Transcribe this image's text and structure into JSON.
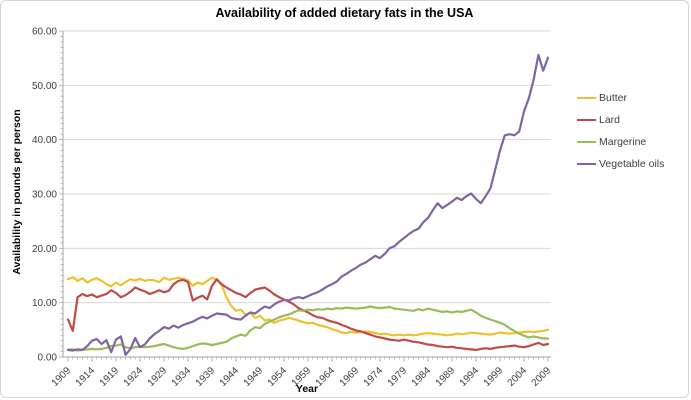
{
  "frame": {
    "title": "Availability of added dietary fats in the USA"
  },
  "chart_data": {
    "type": "line",
    "title": "Availability of added dietary fats in the USA",
    "xlabel": "Year",
    "ylabel": "Availability in pounds per person",
    "ylim": [
      0,
      60
    ],
    "y_tick_step": 10,
    "y_tick_labels": [
      "0.00",
      "10.00",
      "20.00",
      "30.00",
      "40.00",
      "50.00",
      "60.00"
    ],
    "x_range": [
      1909,
      2009
    ],
    "x_tick_step": 5,
    "x_tick_labels": [
      "1909",
      "1914",
      "1919",
      "1924",
      "1929",
      "1934",
      "1939",
      "1944",
      "1949",
      "1954",
      "1959",
      "1964",
      "1969",
      "1974",
      "1979",
      "1984",
      "1989",
      "1994",
      "1999",
      "2004",
      "2009"
    ],
    "grid": true,
    "legend_position": "right",
    "grid_color": "#d9d9d9",
    "axis_color": "#a6a6a6",
    "tick_label_color": "#404040",
    "years": [
      1909,
      1910,
      1911,
      1912,
      1913,
      1914,
      1915,
      1916,
      1917,
      1918,
      1919,
      1920,
      1921,
      1922,
      1923,
      1924,
      1925,
      1926,
      1927,
      1928,
      1929,
      1930,
      1931,
      1932,
      1933,
      1934,
      1935,
      1936,
      1937,
      1938,
      1939,
      1940,
      1941,
      1942,
      1943,
      1944,
      1945,
      1946,
      1947,
      1948,
      1949,
      1950,
      1951,
      1952,
      1953,
      1954,
      1955,
      1956,
      1957,
      1958,
      1959,
      1960,
      1961,
      1962,
      1963,
      1964,
      1965,
      1966,
      1967,
      1968,
      1969,
      1970,
      1971,
      1972,
      1973,
      1974,
      1975,
      1976,
      1977,
      1978,
      1979,
      1980,
      1981,
      1982,
      1983,
      1984,
      1985,
      1986,
      1987,
      1988,
      1989,
      1990,
      1991,
      1992,
      1993,
      1994,
      1995,
      1996,
      1997,
      1998,
      1999,
      2000,
      2001,
      2002,
      2003,
      2004,
      2005,
      2006,
      2007,
      2008,
      2009
    ],
    "series": [
      {
        "name": "Butter",
        "color": "#F0C02F",
        "values": [
          14.3,
          14.7,
          14.0,
          14.5,
          13.7,
          14.2,
          14.5,
          14.0,
          13.4,
          13.0,
          13.7,
          13.2,
          13.8,
          14.3,
          14.1,
          14.4,
          14.0,
          14.2,
          14.1,
          13.8,
          14.6,
          14.2,
          14.4,
          14.6,
          14.4,
          14.1,
          13.1,
          13.7,
          13.4,
          14.0,
          14.6,
          14.2,
          13.3,
          11.0,
          9.4,
          8.5,
          8.7,
          7.8,
          8.1,
          7.2,
          7.6,
          6.7,
          6.9,
          6.3,
          6.7,
          6.9,
          7.2,
          7.0,
          6.7,
          6.4,
          6.2,
          6.3,
          5.9,
          5.7,
          5.5,
          5.1,
          4.9,
          4.5,
          4.4,
          4.6,
          4.5,
          4.6,
          4.7,
          4.6,
          4.4,
          4.2,
          4.3,
          4.1,
          4.0,
          4.1,
          4.0,
          4.1,
          4.0,
          4.1,
          4.3,
          4.4,
          4.3,
          4.2,
          4.1,
          4.0,
          4.1,
          4.3,
          4.2,
          4.3,
          4.5,
          4.4,
          4.3,
          4.2,
          4.1,
          4.3,
          4.5,
          4.4,
          4.3,
          4.4,
          4.5,
          4.6,
          4.7,
          4.6,
          4.7,
          4.8,
          5.0
        ]
      },
      {
        "name": "Lard",
        "color": "#BE4B48",
        "values": [
          6.9,
          4.8,
          11.0,
          11.6,
          11.2,
          11.5,
          11.0,
          11.3,
          11.6,
          12.3,
          11.8,
          11.0,
          11.4,
          12.0,
          12.8,
          12.4,
          12.1,
          11.6,
          11.9,
          12.3,
          11.9,
          12.2,
          13.4,
          14.0,
          14.2,
          13.8,
          10.4,
          10.9,
          11.3,
          10.6,
          13.1,
          14.3,
          13.4,
          12.8,
          12.3,
          11.8,
          11.5,
          11.0,
          11.8,
          12.4,
          12.6,
          12.8,
          12.2,
          11.5,
          11.0,
          10.6,
          10.2,
          9.7,
          9.0,
          8.6,
          8.2,
          7.7,
          7.3,
          7.2,
          6.8,
          6.5,
          6.3,
          5.9,
          5.6,
          5.2,
          4.9,
          4.7,
          4.4,
          4.1,
          3.8,
          3.6,
          3.4,
          3.2,
          3.1,
          3.0,
          3.2,
          3.0,
          2.8,
          2.7,
          2.5,
          2.3,
          2.2,
          2.0,
          1.9,
          1.8,
          1.9,
          1.7,
          1.6,
          1.5,
          1.4,
          1.3,
          1.5,
          1.6,
          1.5,
          1.7,
          1.8,
          1.9,
          2.0,
          2.1,
          1.9,
          1.8,
          2.0,
          2.3,
          2.6,
          2.2,
          2.4
        ]
      },
      {
        "name": "Margerine",
        "color": "#9BBB59",
        "values": [
          1.3,
          1.4,
          1.2,
          1.3,
          1.4,
          1.5,
          1.4,
          1.5,
          1.7,
          2.0,
          2.1,
          2.3,
          1.8,
          1.6,
          1.8,
          1.9,
          1.8,
          1.9,
          2.0,
          2.2,
          2.4,
          2.1,
          1.8,
          1.6,
          1.5,
          1.7,
          2.0,
          2.3,
          2.5,
          2.4,
          2.2,
          2.4,
          2.6,
          2.8,
          3.4,
          3.8,
          4.1,
          3.9,
          4.9,
          5.5,
          5.3,
          6.1,
          6.5,
          6.9,
          7.3,
          7.6,
          7.8,
          8.2,
          8.6,
          8.5,
          8.7,
          8.6,
          8.8,
          8.7,
          8.9,
          8.8,
          9.0,
          8.9,
          9.1,
          9.0,
          8.9,
          9.0,
          9.1,
          9.3,
          9.1,
          9.0,
          9.1,
          9.2,
          8.9,
          8.8,
          8.7,
          8.6,
          8.5,
          8.8,
          8.6,
          8.9,
          8.7,
          8.5,
          8.3,
          8.4,
          8.2,
          8.4,
          8.3,
          8.5,
          8.7,
          8.2,
          7.6,
          7.2,
          6.9,
          6.6,
          6.3,
          5.9,
          5.3,
          4.8,
          4.3,
          3.9,
          3.6,
          3.8,
          3.6,
          3.4,
          3.4
        ]
      },
      {
        "name": "Vegetable oils",
        "color": "#8064A2",
        "values": [
          1.3,
          1.2,
          1.4,
          1.3,
          2.0,
          3.0,
          3.3,
          2.4,
          3.1,
          0.9,
          3.2,
          3.8,
          0.4,
          1.5,
          3.5,
          1.8,
          2.3,
          3.4,
          4.2,
          4.8,
          5.5,
          5.2,
          5.8,
          5.4,
          5.9,
          6.2,
          6.5,
          7.0,
          7.4,
          7.1,
          7.6,
          8.0,
          7.9,
          7.8,
          7.2,
          7.0,
          6.9,
          7.6,
          8.2,
          8.0,
          8.7,
          9.3,
          9.0,
          9.7,
          10.2,
          10.5,
          10.4,
          10.8,
          11.0,
          10.8,
          11.2,
          11.6,
          11.9,
          12.4,
          13.0,
          13.4,
          13.9,
          14.8,
          15.3,
          15.9,
          16.4,
          17.0,
          17.4,
          18.0,
          18.6,
          18.2,
          19.0,
          20.0,
          20.4,
          21.2,
          21.9,
          22.6,
          23.2,
          23.6,
          24.8,
          25.6,
          27.0,
          28.3,
          27.4,
          28.0,
          28.6,
          29.3,
          28.9,
          29.6,
          30.1,
          29.1,
          28.3,
          29.6,
          31.0,
          34.5,
          38.0,
          40.8,
          41.0,
          40.8,
          41.5,
          45.2,
          47.6,
          51.0,
          55.6,
          52.7,
          55.1
        ]
      }
    ]
  }
}
